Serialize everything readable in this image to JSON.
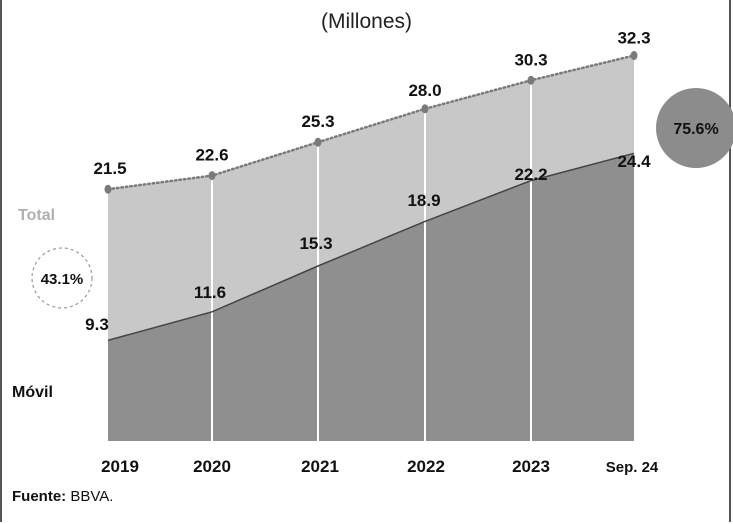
{
  "subtitle": "(Millones)",
  "source": {
    "label": "Fuente:",
    "text": "BBVA."
  },
  "colors": {
    "total_area": "#c8c8c8",
    "movil_area": "#8f8f8f",
    "total_line": "#7a7a7a",
    "movil_line": "#444444",
    "bubble_right": "#8c8c8c"
  },
  "chart_data": {
    "type": "area",
    "categories": [
      "2019",
      "2020",
      "2021",
      "2022",
      "2023",
      "Sep. 24"
    ],
    "series": [
      {
        "name": "Total",
        "values": [
          21.5,
          22.6,
          25.3,
          28.0,
          30.3,
          32.3
        ]
      },
      {
        "name": "Móvil",
        "values": [
          9.3,
          11.6,
          15.3,
          18.9,
          22.2,
          24.4
        ]
      }
    ],
    "total_labels": [
      "21.5",
      "22.6",
      "25.3",
      "28.0",
      "30.3",
      "32.3"
    ],
    "movil_labels": [
      "9.3",
      "11.6",
      "15.3",
      "18.9",
      "22.2",
      "24.4"
    ],
    "annotations": {
      "share_start": "43.1%",
      "share_end": "75.6%"
    },
    "grid": false
  }
}
